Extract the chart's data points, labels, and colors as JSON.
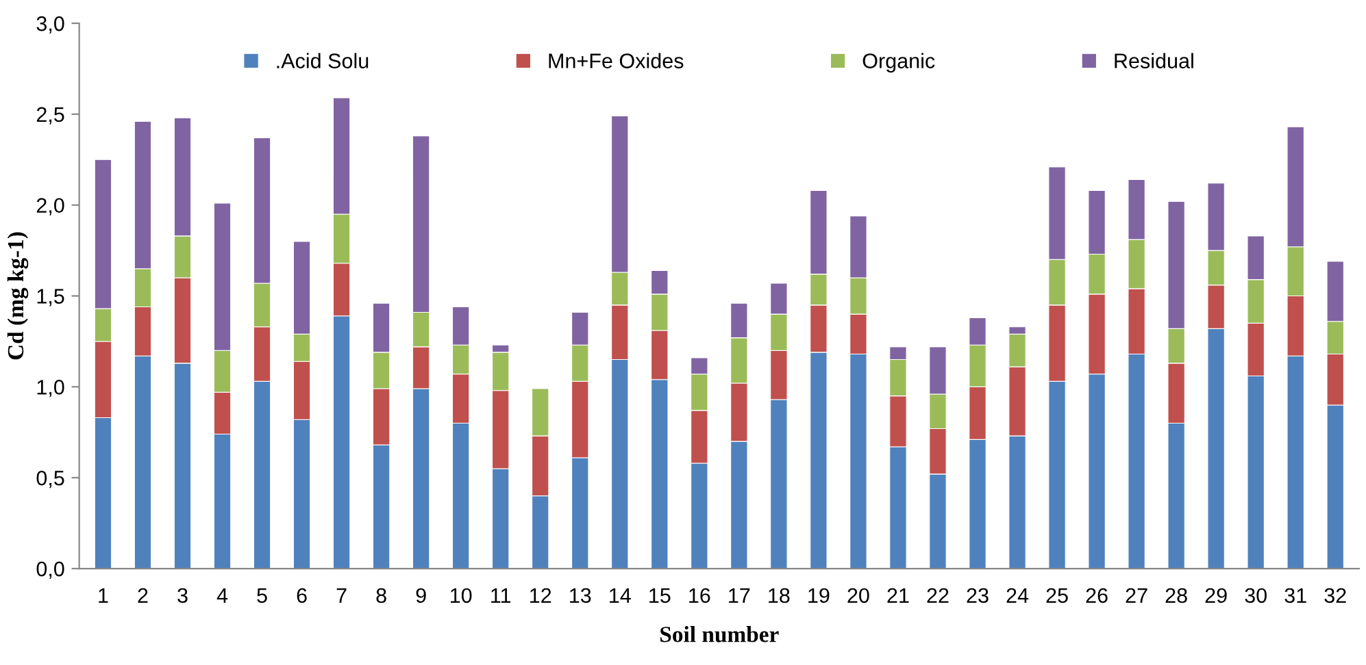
{
  "chart_data": {
    "type": "bar",
    "stacked": true,
    "xlabel": "Soil number",
    "ylabel": "Cd (mg kg-1)",
    "categories": [
      "1",
      "2",
      "3",
      "4",
      "5",
      "6",
      "7",
      "8",
      "9",
      "10",
      "11",
      "12",
      "13",
      "14",
      "15",
      "16",
      "17",
      "18",
      "19",
      "20",
      "21",
      "22",
      "23",
      "24",
      "25",
      "26",
      "27",
      "28",
      "29",
      "30",
      "31",
      "32"
    ],
    "series": [
      {
        "name": ".Acid Solu",
        "color": "#4f81bd",
        "values": [
          0.83,
          1.17,
          1.13,
          0.74,
          1.03,
          0.82,
          1.39,
          0.68,
          0.99,
          0.8,
          0.55,
          0.4,
          0.61,
          1.15,
          1.04,
          0.58,
          0.7,
          0.93,
          1.19,
          1.18,
          0.67,
          0.52,
          0.71,
          0.73,
          1.03,
          1.07,
          1.18,
          0.8,
          1.32,
          1.06,
          1.17,
          0.9
        ]
      },
      {
        "name": "Mn+Fe Oxides",
        "color": "#c0504d",
        "values": [
          0.42,
          0.27,
          0.47,
          0.23,
          0.3,
          0.32,
          0.29,
          0.31,
          0.23,
          0.27,
          0.43,
          0.33,
          0.42,
          0.3,
          0.27,
          0.29,
          0.32,
          0.27,
          0.26,
          0.22,
          0.28,
          0.25,
          0.29,
          0.38,
          0.42,
          0.44,
          0.36,
          0.33,
          0.24,
          0.29,
          0.33,
          0.28
        ]
      },
      {
        "name": "Organic",
        "color": "#9bbb59",
        "values": [
          0.18,
          0.21,
          0.23,
          0.23,
          0.24,
          0.15,
          0.27,
          0.2,
          0.19,
          0.16,
          0.21,
          0.26,
          0.2,
          0.18,
          0.2,
          0.2,
          0.25,
          0.2,
          0.17,
          0.2,
          0.2,
          0.19,
          0.23,
          0.18,
          0.25,
          0.22,
          0.27,
          0.19,
          0.19,
          0.24,
          0.27,
          0.18
        ]
      },
      {
        "name": "Residual",
        "color": "#8064a2",
        "values": [
          0.82,
          0.81,
          0.65,
          0.81,
          0.8,
          0.51,
          0.64,
          0.27,
          0.97,
          0.21,
          0.04,
          null,
          0.18,
          0.86,
          0.13,
          0.09,
          0.19,
          0.17,
          0.46,
          0.34,
          0.07,
          0.26,
          0.15,
          0.04,
          0.51,
          0.35,
          0.33,
          0.7,
          0.37,
          0.24,
          0.66,
          0.33
        ]
      }
    ],
    "ylim": [
      0,
      3.0
    ],
    "yticks": [
      {
        "value": 0,
        "label": "0,0"
      },
      {
        "value": 0.5,
        "label": "0,5"
      },
      {
        "value": 1.0,
        "label": "1,0"
      },
      {
        "value": 1.5,
        "label": "1,5"
      },
      {
        "value": 2.0,
        "label": "2,0"
      },
      {
        "value": 2.5,
        "label": "2,5"
      },
      {
        "value": 3.0,
        "label": "3,0"
      }
    ],
    "grid": false,
    "legend": "top"
  }
}
